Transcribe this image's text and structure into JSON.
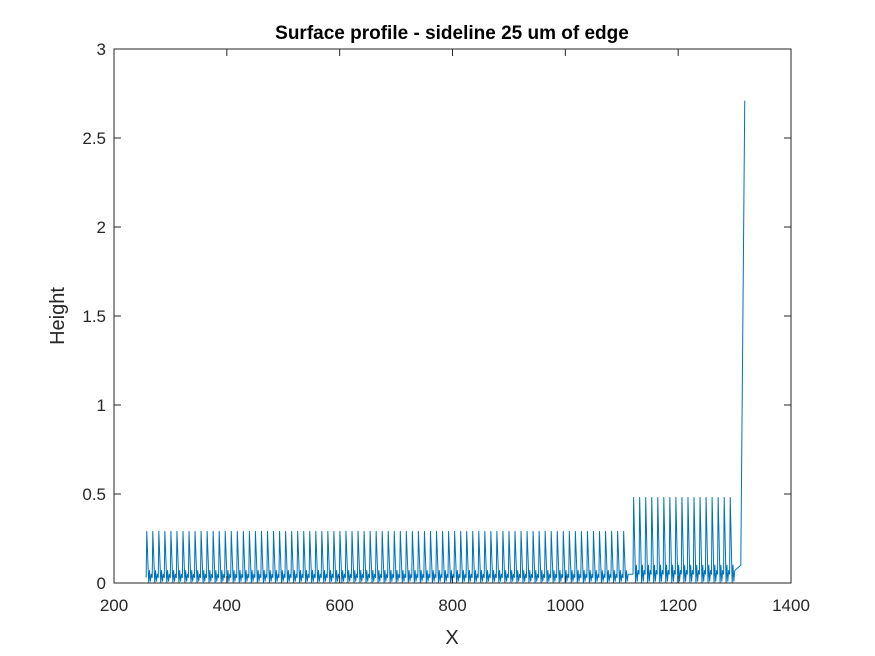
{
  "chart_data": {
    "type": "line",
    "title": "Surface profile - sideline 25 um of edge",
    "xlabel": "X",
    "ylabel": "Height",
    "xlim": [
      200,
      1400
    ],
    "ylim": [
      0,
      3
    ],
    "xticks": [
      200,
      400,
      600,
      800,
      1000,
      1200,
      1400
    ],
    "yticks": [
      0,
      0.5,
      1,
      1.5,
      2,
      2.5,
      3
    ],
    "xtick_labels": [
      "200",
      "400",
      "600",
      "800",
      "1000",
      "1200",
      "1400"
    ],
    "ytick_labels": [
      "0",
      "0.5",
      "1",
      "1.5",
      "2",
      "2.5",
      "3"
    ],
    "grid": false,
    "box": true,
    "line_color": "#0072BD",
    "series": [
      {
        "segments": [
          {
            "x_start": 257,
            "x_end": 1118,
            "period": 10.7,
            "baseline": 0.03,
            "peak": 0.29,
            "secondary_peak": 0.07
          },
          {
            "x_start": 1120,
            "x_end": 1311,
            "period": 10.7,
            "baseline": 0.05,
            "peak": 0.48,
            "secondary_peak": 0.1
          }
        ],
        "final_rise": {
          "x": [
            1311,
            1318
          ],
          "y": [
            0.1,
            2.71
          ]
        }
      }
    ]
  }
}
